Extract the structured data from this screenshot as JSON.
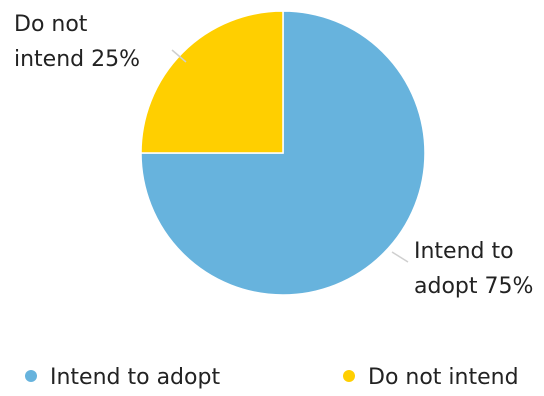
{
  "chart_data": {
    "type": "pie",
    "slices": [
      {
        "name": "Intend to adopt",
        "value": 75,
        "label_line1": "Intend to",
        "label_line2": "adopt 75%",
        "color": "#67b3dd"
      },
      {
        "name": "Do not intend",
        "value": 25,
        "label_line1": "Do not",
        "label_line2": "intend 25%",
        "color": "#ffcf00"
      }
    ],
    "start_angle_deg": 0,
    "direction": "clockwise",
    "legend": {
      "position": "bottom",
      "items": [
        {
          "label": "Intend to adopt",
          "color": "#67b3dd"
        },
        {
          "label": "Do not intend",
          "color": "#ffcf00"
        }
      ]
    }
  }
}
